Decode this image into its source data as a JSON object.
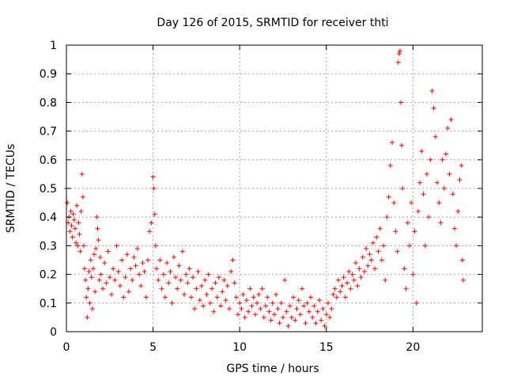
{
  "chart_data": {
    "type": "scatter",
    "title": "Day 126 of 2015, SRMTID for receiver thti",
    "xlabel": "GPS time / hours",
    "ylabel": "SRMTID / TECUs",
    "xlim": [
      0,
      24
    ],
    "ylim": [
      0,
      1
    ],
    "xticks": [
      0,
      5,
      10,
      15,
      20
    ],
    "xtick_labels": [
      "0",
      "5",
      "10",
      "15",
      "20"
    ],
    "yticks": [
      0,
      0.1,
      0.2,
      0.3,
      0.4,
      0.5,
      0.6,
      0.7,
      0.8,
      0.9,
      1
    ],
    "ytick_labels": [
      "0",
      "0.1",
      "0.2",
      "0.3",
      "0.4",
      "0.5",
      "0.6",
      "0.7",
      "0.8",
      "0.9",
      "1"
    ],
    "grid": true,
    "marker": "+",
    "color": "#ff0000",
    "series": [
      {
        "name": "SRMTID",
        "points": [
          [
            0.0,
            0.5
          ],
          [
            0.05,
            0.45
          ],
          [
            0.1,
            0.38
          ],
          [
            0.15,
            0.4
          ],
          [
            0.2,
            0.35
          ],
          [
            0.25,
            0.42
          ],
          [
            0.3,
            0.37
          ],
          [
            0.35,
            0.33
          ],
          [
            0.4,
            0.41
          ],
          [
            0.45,
            0.39
          ],
          [
            0.5,
            0.36
          ],
          [
            0.55,
            0.31
          ],
          [
            0.6,
            0.44
          ],
          [
            0.65,
            0.3
          ],
          [
            0.7,
            0.38
          ],
          [
            0.75,
            0.34
          ],
          [
            0.8,
            0.28
          ],
          [
            0.85,
            0.42
          ],
          [
            0.9,
            0.55
          ],
          [
            0.95,
            0.47
          ],
          [
            1.0,
            0.3
          ],
          [
            1.05,
            0.22
          ],
          [
            1.1,
            0.18
          ],
          [
            1.15,
            0.12
          ],
          [
            1.2,
            0.05
          ],
          [
            1.25,
            0.15
          ],
          [
            1.3,
            0.21
          ],
          [
            1.35,
            0.1
          ],
          [
            1.4,
            0.25
          ],
          [
            1.45,
            0.19
          ],
          [
            1.5,
            0.08
          ],
          [
            1.55,
            0.22
          ],
          [
            1.6,
            0.27
          ],
          [
            1.65,
            0.14
          ],
          [
            1.7,
            0.29
          ],
          [
            1.75,
            0.4
          ],
          [
            1.8,
            0.36
          ],
          [
            1.85,
            0.32
          ],
          [
            1.9,
            0.18
          ],
          [
            1.95,
            0.26
          ],
          [
            2.0,
            0.2
          ],
          [
            2.1,
            0.15
          ],
          [
            2.2,
            0.24
          ],
          [
            2.3,
            0.17
          ],
          [
            2.4,
            0.28
          ],
          [
            2.5,
            0.19
          ],
          [
            2.6,
            0.13
          ],
          [
            2.7,
            0.22
          ],
          [
            2.8,
            0.18
          ],
          [
            2.9,
            0.3
          ],
          [
            3.0,
            0.21
          ],
          [
            3.1,
            0.16
          ],
          [
            3.2,
            0.25
          ],
          [
            3.3,
            0.12
          ],
          [
            3.4,
            0.19
          ],
          [
            3.5,
            0.27
          ],
          [
            3.6,
            0.14
          ],
          [
            3.7,
            0.22
          ],
          [
            3.8,
            0.18
          ],
          [
            3.9,
            0.26
          ],
          [
            4.0,
            0.23
          ],
          [
            4.1,
            0.29
          ],
          [
            4.2,
            0.2
          ],
          [
            4.3,
            0.16
          ],
          [
            4.4,
            0.24
          ],
          [
            4.5,
            0.21
          ],
          [
            4.6,
            0.12
          ],
          [
            4.7,
            0.25
          ],
          [
            4.8,
            0.35
          ],
          [
            4.9,
            0.38
          ],
          [
            5.0,
            0.54
          ],
          [
            5.05,
            0.5
          ],
          [
            5.1,
            0.41
          ],
          [
            5.15,
            0.3
          ],
          [
            5.2,
            0.22
          ],
          [
            5.3,
            0.18
          ],
          [
            5.4,
            0.25
          ],
          [
            5.5,
            0.15
          ],
          [
            5.6,
            0.2
          ],
          [
            5.7,
            0.12
          ],
          [
            5.8,
            0.24
          ],
          [
            5.9,
            0.17
          ],
          [
            6.0,
            0.21
          ],
          [
            6.1,
            0.1
          ],
          [
            6.2,
            0.26
          ],
          [
            6.3,
            0.19
          ],
          [
            6.4,
            0.15
          ],
          [
            6.5,
            0.23
          ],
          [
            6.6,
            0.18
          ],
          [
            6.7,
            0.28
          ],
          [
            6.8,
            0.13
          ],
          [
            6.9,
            0.2
          ],
          [
            7.0,
            0.17
          ],
          [
            7.1,
            0.22
          ],
          [
            7.2,
            0.12
          ],
          [
            7.3,
            0.19
          ],
          [
            7.4,
            0.08
          ],
          [
            7.5,
            0.15
          ],
          [
            7.6,
            0.21
          ],
          [
            7.7,
            0.11
          ],
          [
            7.8,
            0.16
          ],
          [
            7.9,
            0.09
          ],
          [
            8.0,
            0.18
          ],
          [
            8.1,
            0.13
          ],
          [
            8.2,
            0.2
          ],
          [
            8.3,
            0.1
          ],
          [
            8.4,
            0.15
          ],
          [
            8.5,
            0.07
          ],
          [
            8.6,
            0.17
          ],
          [
            8.7,
            0.12
          ],
          [
            8.8,
            0.19
          ],
          [
            8.9,
            0.09
          ],
          [
            9.0,
            0.14
          ],
          [
            9.1,
            0.18
          ],
          [
            9.2,
            0.11
          ],
          [
            9.3,
            0.16
          ],
          [
            9.4,
            0.08
          ],
          [
            9.5,
            0.21
          ],
          [
            9.6,
            0.25
          ],
          [
            9.7,
            0.17
          ],
          [
            9.8,
            0.12
          ],
          [
            9.9,
            0.06
          ],
          [
            10.0,
            0.1
          ],
          [
            10.1,
            0.08
          ],
          [
            10.2,
            0.13
          ],
          [
            10.3,
            0.05
          ],
          [
            10.4,
            0.11
          ],
          [
            10.5,
            0.07
          ],
          [
            10.6,
            0.15
          ],
          [
            10.7,
            0.09
          ],
          [
            10.8,
            0.12
          ],
          [
            10.9,
            0.06
          ],
          [
            11.0,
            0.1
          ],
          [
            11.1,
            0.13
          ],
          [
            11.2,
            0.08
          ],
          [
            11.3,
            0.15
          ],
          [
            11.4,
            0.05
          ],
          [
            11.5,
            0.09
          ],
          [
            11.6,
            0.12
          ],
          [
            11.7,
            0.07
          ],
          [
            11.8,
            0.04
          ],
          [
            11.9,
            0.1
          ],
          [
            12.0,
            0.06
          ],
          [
            12.1,
            0.13
          ],
          [
            12.2,
            0.08
          ],
          [
            12.3,
            0.03
          ],
          [
            12.4,
            0.1
          ],
          [
            12.5,
            0.05
          ],
          [
            12.6,
            0.18
          ],
          [
            12.7,
            0.07
          ],
          [
            12.8,
            0.02
          ],
          [
            12.9,
            0.09
          ],
          [
            13.0,
            0.05
          ],
          [
            13.1,
            0.12
          ],
          [
            13.2,
            0.04
          ],
          [
            13.3,
            0.08
          ],
          [
            13.4,
            0.11
          ],
          [
            13.5,
            0.06
          ],
          [
            13.6,
            0.15
          ],
          [
            13.7,
            0.09
          ],
          [
            13.8,
            0.03
          ],
          [
            13.9,
            0.1
          ],
          [
            14.0,
            0.07
          ],
          [
            14.1,
            0.12
          ],
          [
            14.2,
            0.05
          ],
          [
            14.3,
            0.09
          ],
          [
            14.4,
            0.03
          ],
          [
            14.5,
            0.07
          ],
          [
            14.6,
            0.11
          ],
          [
            14.7,
            0.04
          ],
          [
            14.8,
            0.08
          ],
          [
            14.9,
            0.02
          ],
          [
            15.0,
            0.06
          ],
          [
            15.1,
            0.1
          ],
          [
            15.2,
            0.05
          ],
          [
            15.3,
            0.08
          ],
          [
            15.4,
            0.13
          ],
          [
            15.5,
            0.15
          ],
          [
            15.6,
            0.12
          ],
          [
            15.7,
            0.18
          ],
          [
            15.8,
            0.14
          ],
          [
            15.9,
            0.16
          ],
          [
            16.0,
            0.19
          ],
          [
            16.1,
            0.12
          ],
          [
            16.2,
            0.17
          ],
          [
            16.3,
            0.21
          ],
          [
            16.4,
            0.15
          ],
          [
            16.5,
            0.2
          ],
          [
            16.6,
            0.18
          ],
          [
            16.7,
            0.24
          ],
          [
            16.8,
            0.16
          ],
          [
            16.9,
            0.22
          ],
          [
            17.0,
            0.19
          ],
          [
            17.1,
            0.26
          ],
          [
            17.2,
            0.21
          ],
          [
            17.3,
            0.29
          ],
          [
            17.4,
            0.23
          ],
          [
            17.5,
            0.27
          ],
          [
            17.6,
            0.25
          ],
          [
            17.7,
            0.31
          ],
          [
            17.8,
            0.22
          ],
          [
            17.9,
            0.33
          ],
          [
            18.0,
            0.28
          ],
          [
            18.1,
            0.36
          ],
          [
            18.2,
            0.25
          ],
          [
            18.3,
            0.3
          ],
          [
            18.4,
            0.18
          ],
          [
            18.5,
            0.4
          ],
          [
            18.6,
            0.47
          ],
          [
            18.7,
            0.58
          ],
          [
            18.8,
            0.66
          ],
          [
            18.9,
            0.45
          ],
          [
            19.0,
            0.35
          ],
          [
            19.1,
            0.28
          ],
          [
            19.15,
            0.94
          ],
          [
            19.2,
            0.97
          ],
          [
            19.25,
            0.98
          ],
          [
            19.3,
            0.8
          ],
          [
            19.35,
            0.65
          ],
          [
            19.4,
            0.5
          ],
          [
            19.5,
            0.22
          ],
          [
            19.6,
            0.15
          ],
          [
            19.7,
            0.38
          ],
          [
            19.8,
            0.3
          ],
          [
            19.9,
            0.45
          ],
          [
            20.0,
            0.2
          ],
          [
            20.1,
            0.35
          ],
          [
            20.2,
            0.1
          ],
          [
            20.3,
            0.42
          ],
          [
            20.4,
            0.52
          ],
          [
            20.5,
            0.63
          ],
          [
            20.6,
            0.48
          ],
          [
            20.7,
            0.3
          ],
          [
            20.8,
            0.55
          ],
          [
            20.9,
            0.4
          ],
          [
            21.0,
            0.6
          ],
          [
            21.1,
            0.84
          ],
          [
            21.2,
            0.78
          ],
          [
            21.3,
            0.68
          ],
          [
            21.4,
            0.52
          ],
          [
            21.5,
            0.45
          ],
          [
            21.6,
            0.38
          ],
          [
            21.7,
            0.6
          ],
          [
            21.8,
            0.5
          ],
          [
            21.9,
            0.62
          ],
          [
            22.0,
            0.71
          ],
          [
            22.1,
            0.55
          ],
          [
            22.2,
            0.74
          ],
          [
            22.3,
            0.48
          ],
          [
            22.4,
            0.36
          ],
          [
            22.5,
            0.3
          ],
          [
            22.6,
            0.42
          ],
          [
            22.7,
            0.53
          ],
          [
            22.8,
            0.58
          ],
          [
            22.85,
            0.25
          ],
          [
            22.9,
            0.18
          ]
        ]
      }
    ]
  }
}
